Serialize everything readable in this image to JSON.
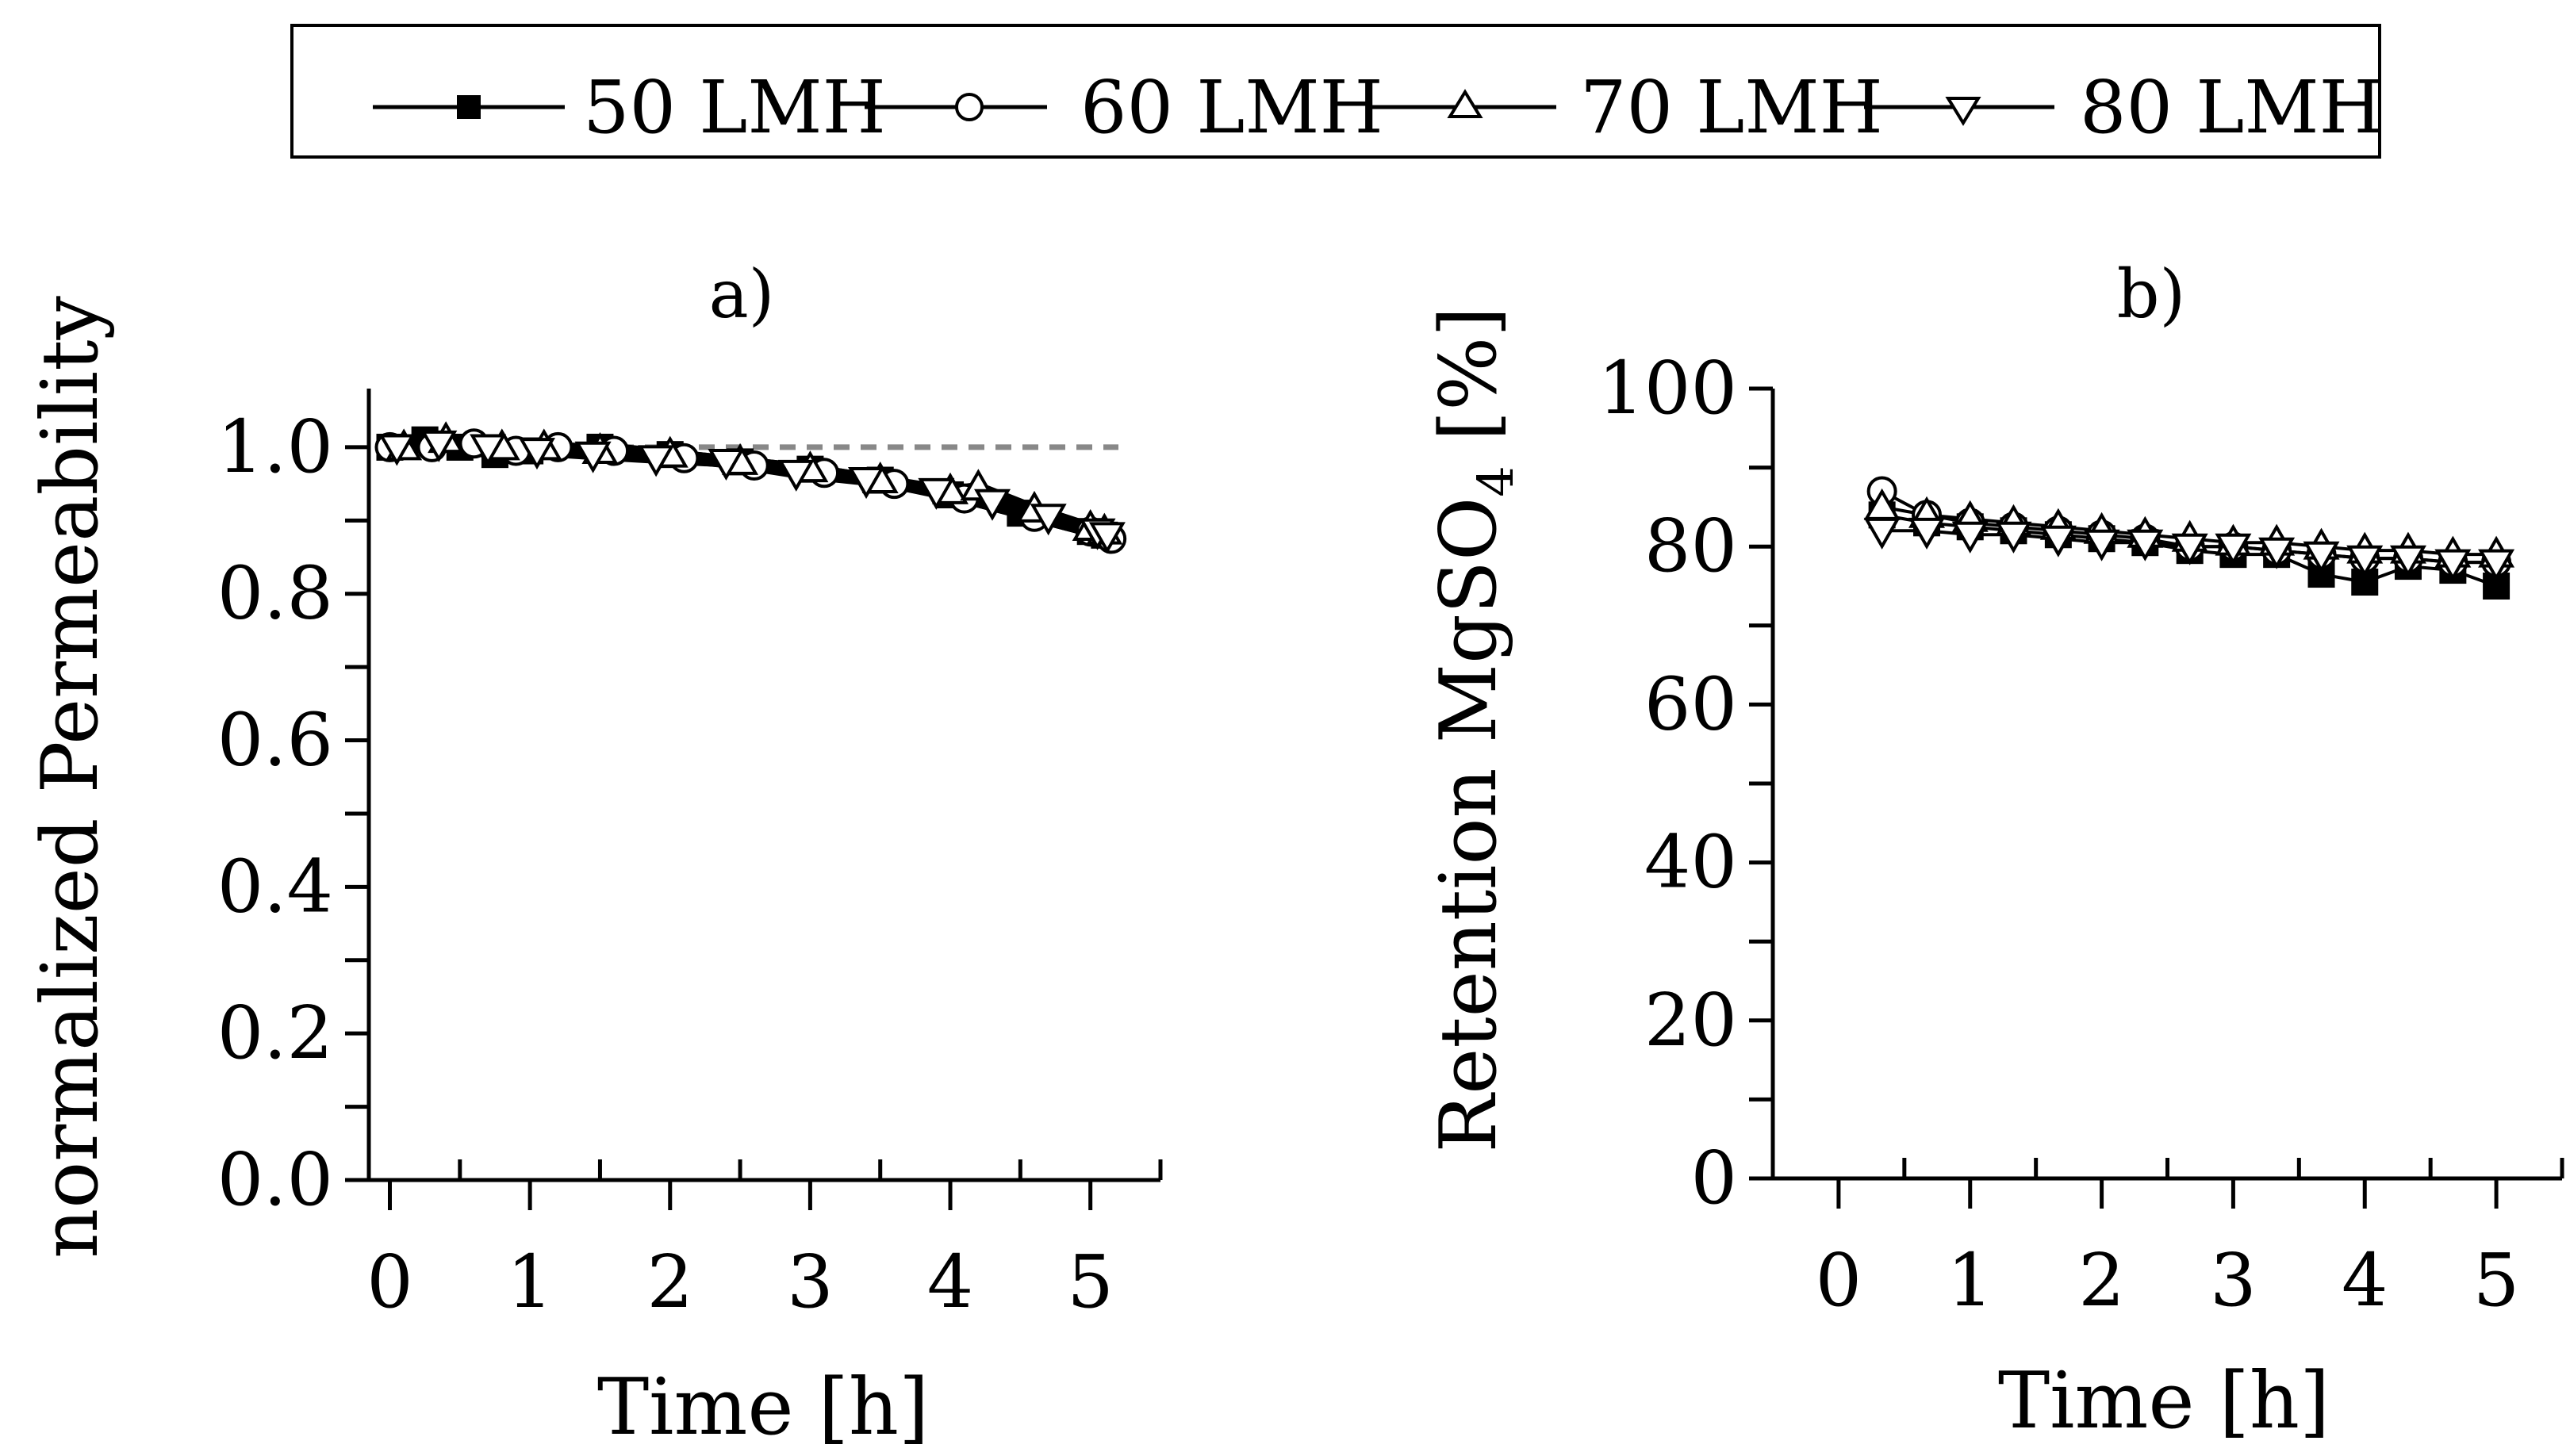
{
  "legend": {
    "items": [
      {
        "label": "50 LMH",
        "marker": "filled-square-icon"
      },
      {
        "label": "60 LMH",
        "marker": "open-circle-icon"
      },
      {
        "label": "70 LMH",
        "marker": "open-triangle-up-icon"
      },
      {
        "label": "80 LMH",
        "marker": "open-triangle-down-icon"
      }
    ]
  },
  "chart_data": [
    {
      "type": "line",
      "title": "a)",
      "xlabel": "Time [h]",
      "ylabel": "normalized Permeability",
      "xlim": [
        -0.15,
        5.5
      ],
      "ylim": [
        0.0,
        1.08
      ],
      "xticks": [
        "0",
        "1",
        "2",
        "3",
        "4",
        "5"
      ],
      "yticks": [
        "0.0",
        "0.2",
        "0.4",
        "0.6",
        "0.8",
        "1.0"
      ],
      "reference_line": {
        "y": 1.0,
        "color": "#888888",
        "style": "dashed"
      },
      "series": [
        {
          "name": "50 LMH",
          "x": [
            0,
            0.25,
            0.5,
            0.75,
            1.0,
            1.5,
            2.0,
            2.5,
            3.0,
            3.5,
            4.0,
            4.5,
            5.0,
            5.1
          ],
          "y": [
            1.0,
            1.01,
            1.0,
            0.99,
            0.995,
            1.0,
            0.99,
            0.98,
            0.97,
            0.955,
            0.935,
            0.91,
            0.885,
            0.88
          ]
        },
        {
          "name": "60 LMH",
          "x": [
            0,
            0.3,
            0.6,
            0.9,
            1.2,
            1.6,
            2.1,
            2.6,
            3.1,
            3.6,
            4.1,
            4.6,
            5.0,
            5.15
          ],
          "y": [
            1.0,
            1.0,
            1.005,
            0.995,
            1.0,
            0.995,
            0.985,
            0.975,
            0.965,
            0.95,
            0.93,
            0.905,
            0.885,
            0.875
          ]
        },
        {
          "name": "70 LMH",
          "x": [
            0.1,
            0.4,
            0.8,
            1.1,
            1.5,
            2.0,
            2.5,
            3.0,
            3.5,
            4.0,
            4.2,
            4.6,
            5.0,
            5.1
          ],
          "y": [
            1.0,
            1.01,
            1.0,
            1.0,
            0.995,
            0.99,
            0.98,
            0.97,
            0.955,
            0.94,
            0.945,
            0.915,
            0.89,
            0.885
          ]
        },
        {
          "name": "80 LMH",
          "x": [
            0.05,
            0.35,
            0.7,
            1.05,
            1.45,
            1.9,
            2.4,
            2.9,
            3.4,
            3.9,
            4.3,
            4.7,
            5.05,
            5.12
          ],
          "y": [
            1.0,
            1.005,
            1.0,
            0.995,
            0.99,
            0.985,
            0.98,
            0.965,
            0.955,
            0.94,
            0.925,
            0.905,
            0.885,
            0.88
          ]
        }
      ]
    },
    {
      "type": "line",
      "title": "b)",
      "xlabel": "Time [h]",
      "ylabel": "Retention MgSO",
      "ylabel_subscript": "4",
      "ylabel_suffix": " [%]",
      "xlim": [
        -0.5,
        5.5
      ],
      "ylim": [
        0,
        100
      ],
      "xticks": [
        "0",
        "1",
        "2",
        "3",
        "4",
        "5"
      ],
      "yticks": [
        "0",
        "20",
        "40",
        "60",
        "80",
        "100"
      ],
      "series": [
        {
          "name": "50 LMH",
          "x": [
            0.33,
            0.67,
            1.0,
            1.33,
            1.67,
            2.0,
            2.33,
            2.67,
            3.0,
            3.33,
            3.67,
            4.0,
            4.33,
            4.67,
            5.0
          ],
          "y": [
            84,
            83,
            82.5,
            82,
            81.5,
            81,
            80.5,
            79.5,
            79,
            79,
            76.5,
            75.5,
            77.5,
            77,
            75
          ]
        },
        {
          "name": "60 LMH",
          "x": [
            0.33,
            0.67,
            1.0,
            1.33,
            1.67,
            2.0,
            2.33,
            2.67,
            3.0,
            3.33,
            3.67,
            4.0,
            4.33,
            4.67,
            5.0
          ],
          "y": [
            87,
            84,
            83,
            82.5,
            82,
            81.5,
            81,
            80,
            80,
            79.5,
            79,
            78.5,
            78.5,
            78,
            78
          ]
        },
        {
          "name": "70 LMH",
          "x": [
            0.33,
            0.67,
            1.0,
            1.33,
            1.67,
            2.0,
            2.33,
            2.67,
            3.0,
            3.33,
            3.67,
            4.0,
            4.33,
            4.67,
            5.0
          ],
          "y": [
            85,
            84,
            83.5,
            83,
            82.5,
            82,
            81.5,
            81,
            80.5,
            80.5,
            80,
            79.5,
            79.5,
            79,
            79
          ]
        },
        {
          "name": "80 LMH",
          "x": [
            0.33,
            0.67,
            1.0,
            1.33,
            1.67,
            2.0,
            2.33,
            2.67,
            3.0,
            3.33,
            3.67,
            4.0,
            4.33,
            4.67,
            5.0
          ],
          "y": [
            82,
            82,
            81.5,
            81.5,
            81,
            80.5,
            80.5,
            80,
            80,
            79.5,
            79,
            78.5,
            78.5,
            78,
            78
          ]
        }
      ]
    }
  ]
}
